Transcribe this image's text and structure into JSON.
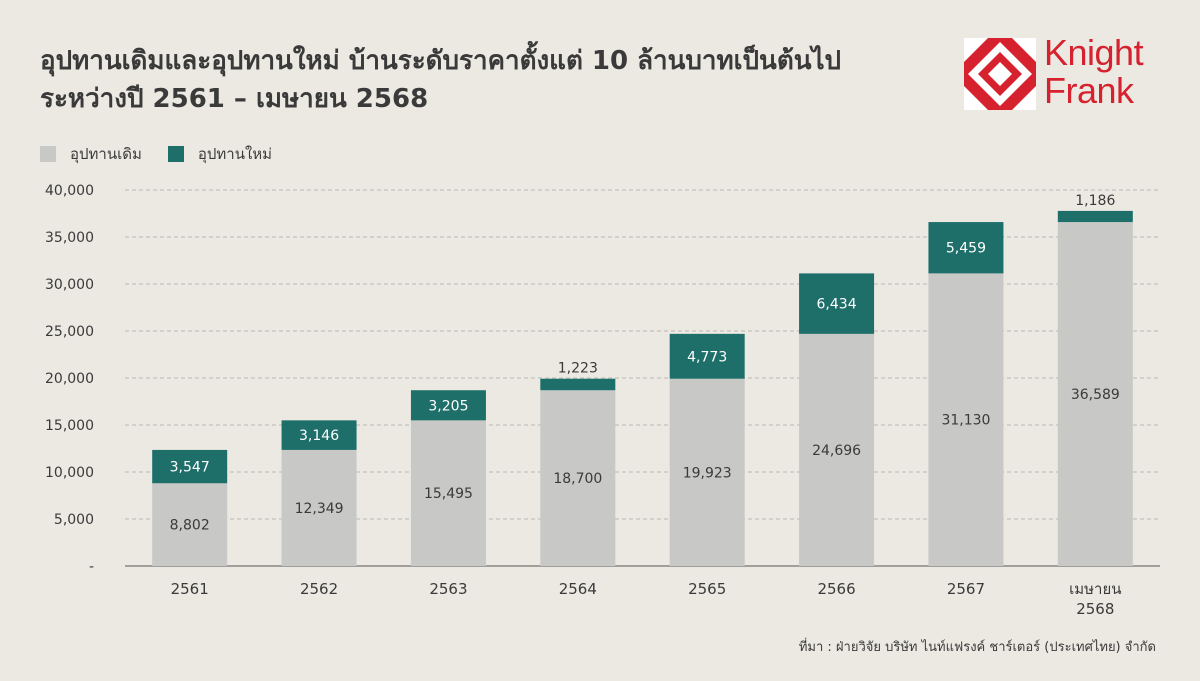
{
  "title_line1": "อุปทานเดิมและอุปทานใหม่ บ้านระดับราคาตั้งแต่ 10 ล้านบาทเป็นต้นไป",
  "title_line2": "ระหว่างปี 2561 – เมษายน 2568",
  "logo": {
    "word1": "Knight",
    "word2": "Frank",
    "color": "#d6212f"
  },
  "legend": {
    "old": "อุปทานเดิม",
    "new": "อุปทานใหม่"
  },
  "source": "ที่มา : ฝ่ายวิจัย บริษัท ไนท์แฟรงค์ ชาร์เตอร์ (ประเทศไทย) จำกัด",
  "colors": {
    "old": "#c8c8c6",
    "new": "#1e6f6a",
    "background": "#ebe9e2"
  },
  "chart_data": {
    "type": "bar",
    "stacked": true,
    "categories": [
      "2561",
      "2562",
      "2563",
      "2564",
      "2565",
      "2566",
      "2567",
      "เมษายน 2568"
    ],
    "series": [
      {
        "name": "อุปทานเดิม",
        "values": [
          8802,
          12349,
          15495,
          18700,
          19923,
          24696,
          31130,
          36589
        ]
      },
      {
        "name": "อุปทานใหม่",
        "values": [
          3547,
          3146,
          3205,
          1223,
          4773,
          6434,
          5459,
          1186
        ]
      }
    ],
    "ylim": [
      0,
      40000
    ],
    "yticks": [
      0,
      5000,
      10000,
      15000,
      20000,
      25000,
      30000,
      35000,
      40000
    ],
    "ytick_labels": [
      "-",
      "5,000",
      "10,000",
      "15,000",
      "20,000",
      "25,000",
      "30,000",
      "35,000",
      "40,000"
    ],
    "grid": "horizontal dashed",
    "legend_position": "top-left"
  }
}
